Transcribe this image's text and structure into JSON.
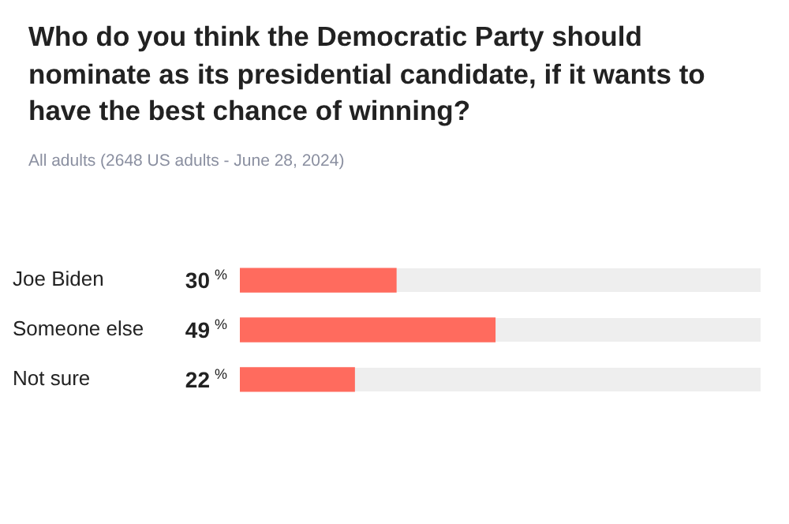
{
  "chart_data": {
    "type": "bar",
    "orientation": "horizontal",
    "title": "Who do you think the Democratic Party should nominate as its presidential candidate, if it wants to have the best chance of winning?",
    "subtitle": "All adults (2648 US adults - June 28, 2024)",
    "categories": [
      "Joe Biden",
      "Someone else",
      "Not sure"
    ],
    "values": [
      30,
      49,
      22
    ],
    "value_labels": [
      "30$^{%}$",
      "49$^{%}$",
      "22$^{%}$"
    ],
    "color": "#ff6b5e",
    "xlim": [
      0,
      100
    ],
    "legend": false
  }
}
